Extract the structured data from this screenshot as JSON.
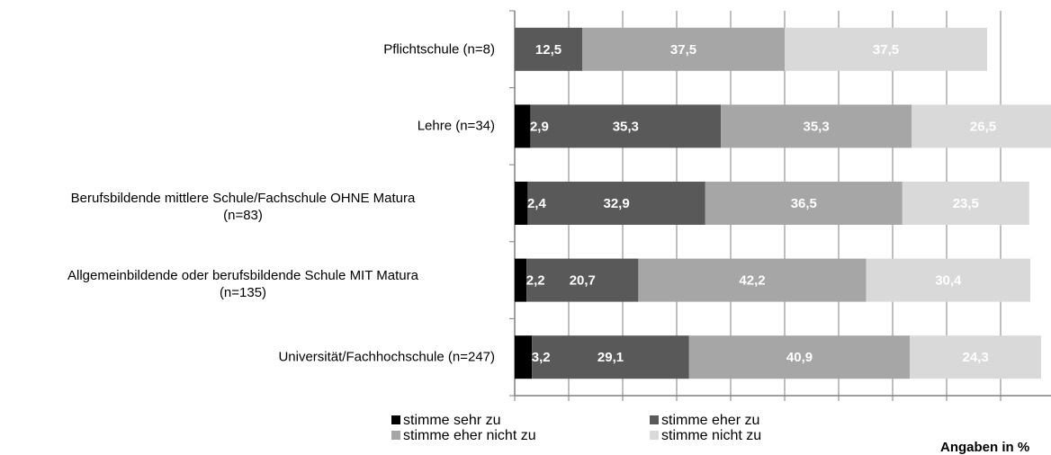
{
  "chart_data": {
    "type": "stacked-barh",
    "categories": [
      "Pflichtschule (n=8)",
      "Lehre (n=34)",
      "Berufsbildende mittlere Schule/Fachschule OHNE Matura\n(n=83)",
      "Allgemeinbildende oder berufsbildende Schule MIT Matura\n(n=135)",
      "Universität/Fachhochschule (n=247)"
    ],
    "series": [
      {
        "name": "stimme sehr zu",
        "color": "#000000",
        "values": [
          null,
          2.9,
          2.4,
          2.2,
          3.2
        ],
        "value_labels": [
          null,
          "2,9",
          "2,4",
          "2,2",
          "3,2"
        ]
      },
      {
        "name": "stimme eher zu",
        "color": "#595959",
        "values": [
          12.5,
          35.3,
          32.9,
          20.7,
          29.1
        ],
        "value_labels": [
          "12,5",
          "35,3",
          "32,9",
          "20,7",
          "29,1"
        ]
      },
      {
        "name": "stimme eher nicht zu",
        "color": "#a6a6a6",
        "values": [
          37.5,
          35.3,
          36.5,
          42.2,
          40.9
        ],
        "value_labels": [
          "37,5",
          "35,3",
          "36,5",
          "42,2",
          "40,9"
        ]
      },
      {
        "name": "stimme nicht zu",
        "color": "#d9d9d9",
        "values": [
          37.5,
          26.5,
          23.5,
          30.4,
          24.3
        ],
        "value_labels": [
          "37,5",
          "26,5",
          "23,5",
          "30,4",
          "24,3"
        ]
      }
    ],
    "xlim": [
      0,
      100
    ],
    "xticks": [
      0,
      10,
      20,
      30,
      40,
      50,
      60,
      70,
      80,
      90,
      100
    ],
    "grid": true,
    "note": "Angaben in %"
  }
}
